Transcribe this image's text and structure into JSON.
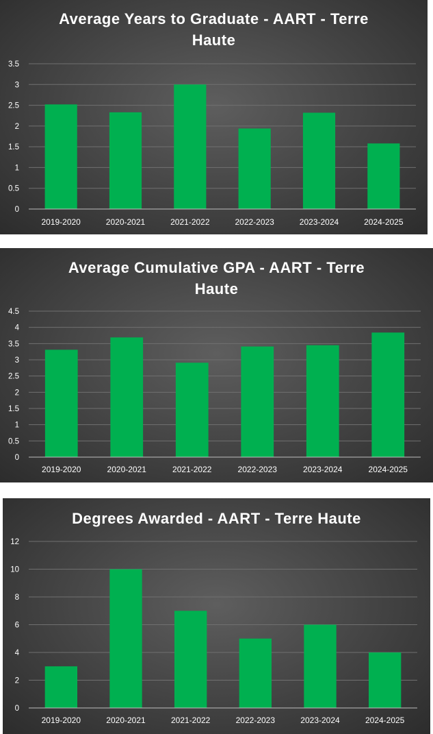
{
  "colors": {
    "bar": "#00b050",
    "grid": "#707070",
    "axis": "#bfbfbf",
    "text": "#ffffff"
  },
  "chart_data": [
    {
      "type": "bar",
      "title": "Average Years to Graduate - AART - Terre Haute",
      "categories": [
        "2019-2020",
        "2020-2021",
        "2021-2022",
        "2022-2023",
        "2023-2024",
        "2024-2025"
      ],
      "values": [
        2.52,
        2.33,
        3.0,
        1.94,
        2.32,
        1.58
      ],
      "ylim": [
        0,
        3.5
      ],
      "yticks": [
        "0",
        "0.5",
        "1",
        "1.5",
        "2",
        "2.5",
        "3",
        "3.5"
      ],
      "grid": true,
      "legend": "none"
    },
    {
      "type": "bar",
      "title": "Average Cumulative GPA - AART - Terre Haute",
      "categories": [
        "2019-2020",
        "2020-2021",
        "2021-2022",
        "2022-2023",
        "2023-2024",
        "2024-2025"
      ],
      "values": [
        3.31,
        3.69,
        2.91,
        3.41,
        3.45,
        3.84
      ],
      "ylim": [
        0,
        4.5
      ],
      "yticks": [
        "0",
        "0.5",
        "1",
        "1.5",
        "2",
        "2.5",
        "3",
        "3.5",
        "4",
        "4.5"
      ],
      "grid": true,
      "legend": "none"
    },
    {
      "type": "bar",
      "title": "Degrees Awarded - AART - Terre Haute",
      "categories": [
        "2019-2020",
        "2020-2021",
        "2021-2022",
        "2022-2023",
        "2023-2024",
        "2024-2025"
      ],
      "values": [
        3,
        10,
        7,
        5,
        6,
        4
      ],
      "ylim": [
        0,
        12
      ],
      "yticks": [
        "0",
        "2",
        "4",
        "6",
        "8",
        "10",
        "12"
      ],
      "grid": true,
      "legend": "none"
    }
  ]
}
